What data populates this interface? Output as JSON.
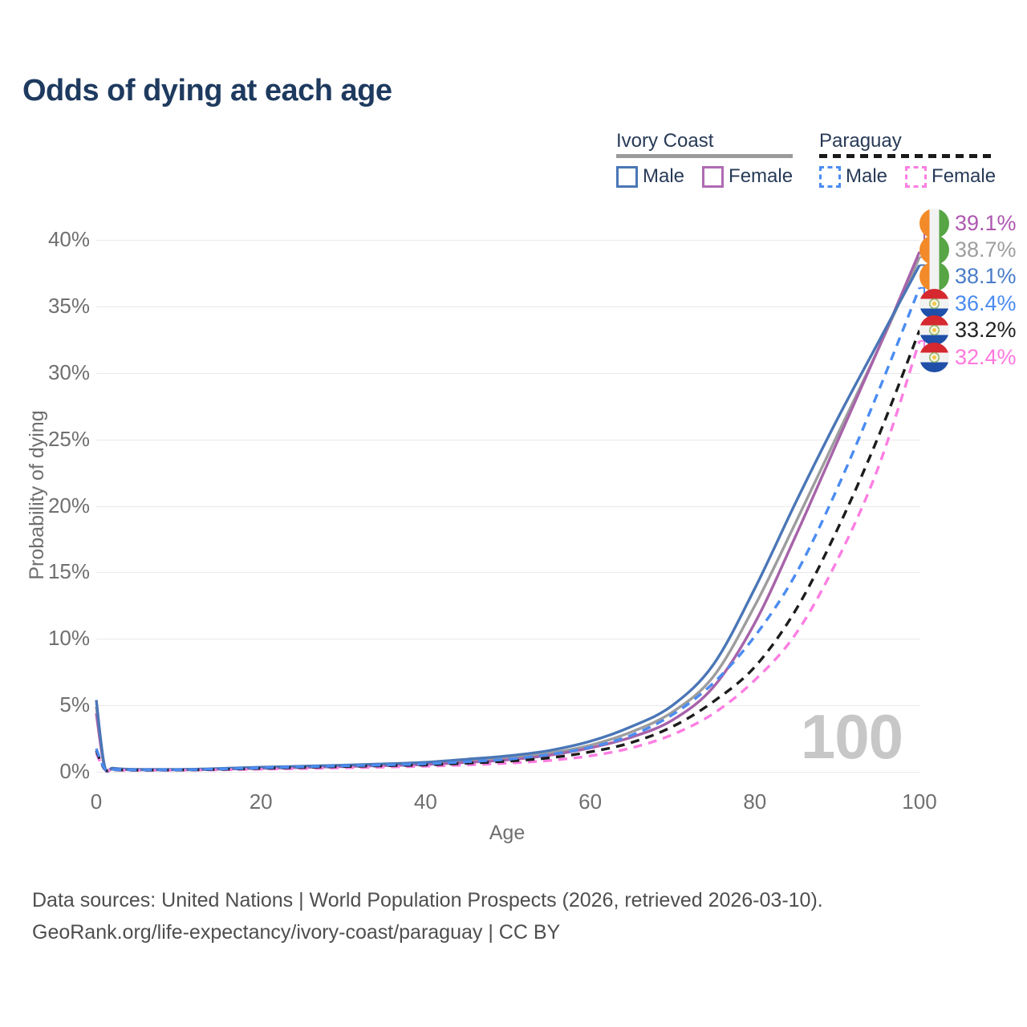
{
  "title": "Odds of dying at each age",
  "watermark": "100",
  "legend": {
    "groups": [
      {
        "label": "Ivory Coast",
        "underline_style": "solid",
        "underline_color": "#9b9b9b",
        "items": [
          {
            "label": "Male",
            "swatch_style": "solid",
            "swatch_color": "#4a76b6"
          },
          {
            "label": "Female",
            "swatch_style": "solid",
            "swatch_color": "#b06ab2"
          }
        ]
      },
      {
        "label": "Paraguay",
        "underline_style": "dashed",
        "underline_color": "#1a1a1a",
        "items": [
          {
            "label": "Male",
            "swatch_style": "dashed",
            "swatch_color": "#4b8cf1"
          },
          {
            "label": "Female",
            "swatch_style": "dashed",
            "swatch_color": "#fc7ee2"
          }
        ]
      }
    ]
  },
  "flags": {
    "ivory-coast": {
      "orientation": "vertical",
      "colors": [
        "#F28A29",
        "#F2F2F2",
        "#57A545"
      ],
      "emblem": false
    },
    "paraguay": {
      "orientation": "horizontal",
      "colors": [
        "#D5282F",
        "#F2F2F2",
        "#1F4FA8"
      ],
      "emblem": true
    }
  },
  "footer": {
    "line1": "Data sources: United Nations | World Population Prospects (2026, retrieved 2026-03-10).",
    "line2": "GeoRank.org/life-expectancy/ivory-coast/paraguay | CC BY"
  },
  "chart_data": {
    "type": "line",
    "title": "Odds of dying at each age",
    "xlabel": "Age",
    "ylabel": "Probability of dying",
    "x_axis": {
      "ticks": [
        0,
        20,
        40,
        60,
        80,
        100
      ],
      "range": [
        0,
        100
      ]
    },
    "y_axis": {
      "tick_labels": [
        "0%",
        "5%",
        "10%",
        "15%",
        "20%",
        "25%",
        "30%",
        "35%",
        "40%"
      ],
      "tick_values": [
        0,
        5,
        10,
        15,
        20,
        25,
        30,
        35,
        40
      ],
      "range_pct": [
        0,
        41.5
      ]
    },
    "grid": "horizontal",
    "legend_position": "top-right",
    "series": [
      {
        "name": "Ivory Coast — Male",
        "country": "Ivory Coast",
        "sex": "male",
        "style": "solid",
        "color": "#4a76b6",
        "flag": "ivory-coast",
        "end_label": "38.1%",
        "end_value": 38.1,
        "end_label_color": "#4a7cc9",
        "points": [
          [
            0,
            5.4
          ],
          [
            1,
            0.45
          ],
          [
            2,
            0.28
          ],
          [
            4,
            0.2
          ],
          [
            8,
            0.18
          ],
          [
            12,
            0.2
          ],
          [
            16,
            0.27
          ],
          [
            20,
            0.35
          ],
          [
            25,
            0.42
          ],
          [
            30,
            0.5
          ],
          [
            35,
            0.6
          ],
          [
            40,
            0.72
          ],
          [
            45,
            0.95
          ],
          [
            50,
            1.2
          ],
          [
            55,
            1.6
          ],
          [
            60,
            2.3
          ],
          [
            65,
            3.4
          ],
          [
            70,
            5.0
          ],
          [
            75,
            8.1
          ],
          [
            80,
            13.8
          ],
          [
            85,
            20.3
          ],
          [
            90,
            26.5
          ],
          [
            95,
            32.3
          ],
          [
            100,
            38.1
          ]
        ]
      },
      {
        "name": "Ivory Coast — Both sexes",
        "country": "Ivory Coast",
        "sex": "both",
        "style": "solid",
        "color": "#9d9d9d",
        "flag": "ivory-coast",
        "end_label": "38.7%",
        "end_value": 38.7,
        "end_label_color": "#9e9e9e",
        "points": [
          [
            0,
            4.9
          ],
          [
            1,
            0.4
          ],
          [
            2,
            0.25
          ],
          [
            4,
            0.18
          ],
          [
            8,
            0.16
          ],
          [
            12,
            0.18
          ],
          [
            16,
            0.24
          ],
          [
            20,
            0.3
          ],
          [
            25,
            0.37
          ],
          [
            30,
            0.45
          ],
          [
            35,
            0.53
          ],
          [
            40,
            0.63
          ],
          [
            45,
            0.83
          ],
          [
            50,
            1.05
          ],
          [
            55,
            1.4
          ],
          [
            60,
            2.0
          ],
          [
            65,
            3.0
          ],
          [
            70,
            4.5
          ],
          [
            75,
            7.2
          ],
          [
            80,
            12.5
          ],
          [
            85,
            18.8
          ],
          [
            90,
            25.3
          ],
          [
            95,
            31.8
          ],
          [
            100,
            38.7
          ]
        ]
      },
      {
        "name": "Ivory Coast — Female",
        "country": "Ivory Coast",
        "sex": "female",
        "style": "solid",
        "color": "#a763a9",
        "flag": "ivory-coast",
        "end_label": "39.1%",
        "end_value": 39.1,
        "end_label_color": "#ae58b0",
        "points": [
          [
            0,
            4.4
          ],
          [
            1,
            0.36
          ],
          [
            2,
            0.22
          ],
          [
            4,
            0.16
          ],
          [
            8,
            0.15
          ],
          [
            12,
            0.16
          ],
          [
            16,
            0.21
          ],
          [
            20,
            0.26
          ],
          [
            25,
            0.33
          ],
          [
            30,
            0.4
          ],
          [
            35,
            0.47
          ],
          [
            40,
            0.55
          ],
          [
            45,
            0.71
          ],
          [
            50,
            0.9
          ],
          [
            55,
            1.25
          ],
          [
            60,
            1.8
          ],
          [
            65,
            2.6
          ],
          [
            70,
            3.9
          ],
          [
            75,
            6.4
          ],
          [
            80,
            11.2
          ],
          [
            85,
            17.8
          ],
          [
            90,
            24.8
          ],
          [
            95,
            31.8
          ],
          [
            100,
            39.1
          ]
        ]
      },
      {
        "name": "Paraguay — Male",
        "country": "Paraguay",
        "sex": "male",
        "style": "dashed",
        "color": "#4b8cf1",
        "flag": "paraguay",
        "end_label": "36.4%",
        "end_value": 36.4,
        "end_label_color": "#4b8bf0",
        "points": [
          [
            0,
            1.75
          ],
          [
            1,
            0.25
          ],
          [
            2,
            0.18
          ],
          [
            4,
            0.15
          ],
          [
            8,
            0.15
          ],
          [
            12,
            0.17
          ],
          [
            16,
            0.23
          ],
          [
            20,
            0.3
          ],
          [
            25,
            0.38
          ],
          [
            30,
            0.45
          ],
          [
            35,
            0.52
          ],
          [
            40,
            0.6
          ],
          [
            45,
            0.76
          ],
          [
            50,
            0.95
          ],
          [
            55,
            1.3
          ],
          [
            60,
            1.85
          ],
          [
            65,
            2.75
          ],
          [
            70,
            4.3
          ],
          [
            75,
            6.7
          ],
          [
            80,
            10.2
          ],
          [
            85,
            14.9
          ],
          [
            90,
            21.3
          ],
          [
            95,
            28.6
          ],
          [
            100,
            36.4
          ]
        ]
      },
      {
        "name": "Paraguay — Both sexes",
        "country": "Paraguay",
        "sex": "both",
        "style": "dashed",
        "color": "#1c1c1c",
        "flag": "paraguay",
        "end_label": "33.2%",
        "end_value": 33.2,
        "end_label_color": "#212121",
        "points": [
          [
            0,
            1.6
          ],
          [
            1,
            0.22
          ],
          [
            2,
            0.16
          ],
          [
            4,
            0.13
          ],
          [
            8,
            0.13
          ],
          [
            12,
            0.15
          ],
          [
            16,
            0.2
          ],
          [
            20,
            0.26
          ],
          [
            25,
            0.33
          ],
          [
            30,
            0.4
          ],
          [
            35,
            0.46
          ],
          [
            40,
            0.52
          ],
          [
            45,
            0.65
          ],
          [
            50,
            0.8
          ],
          [
            55,
            1.05
          ],
          [
            60,
            1.5
          ],
          [
            65,
            2.2
          ],
          [
            70,
            3.4
          ],
          [
            75,
            5.3
          ],
          [
            80,
            7.9
          ],
          [
            85,
            12.2
          ],
          [
            90,
            18.2
          ],
          [
            95,
            25.2
          ],
          [
            100,
            33.2
          ]
        ]
      },
      {
        "name": "Paraguay — Female",
        "country": "Paraguay",
        "sex": "female",
        "style": "dashed",
        "color": "#fc7ee2",
        "flag": "paraguay",
        "end_label": "32.4%",
        "end_value": 32.4,
        "end_label_color": "#ff77dd",
        "points": [
          [
            0,
            1.4
          ],
          [
            1,
            0.2
          ],
          [
            2,
            0.14
          ],
          [
            4,
            0.12
          ],
          [
            8,
            0.12
          ],
          [
            12,
            0.13
          ],
          [
            16,
            0.16
          ],
          [
            20,
            0.2
          ],
          [
            25,
            0.25
          ],
          [
            30,
            0.3
          ],
          [
            35,
            0.36
          ],
          [
            40,
            0.42
          ],
          [
            45,
            0.52
          ],
          [
            50,
            0.65
          ],
          [
            55,
            0.85
          ],
          [
            60,
            1.2
          ],
          [
            65,
            1.8
          ],
          [
            70,
            2.8
          ],
          [
            75,
            4.4
          ],
          [
            80,
            6.9
          ],
          [
            85,
            10.4
          ],
          [
            90,
            15.9
          ],
          [
            95,
            22.9
          ],
          [
            100,
            32.4
          ]
        ]
      }
    ]
  }
}
